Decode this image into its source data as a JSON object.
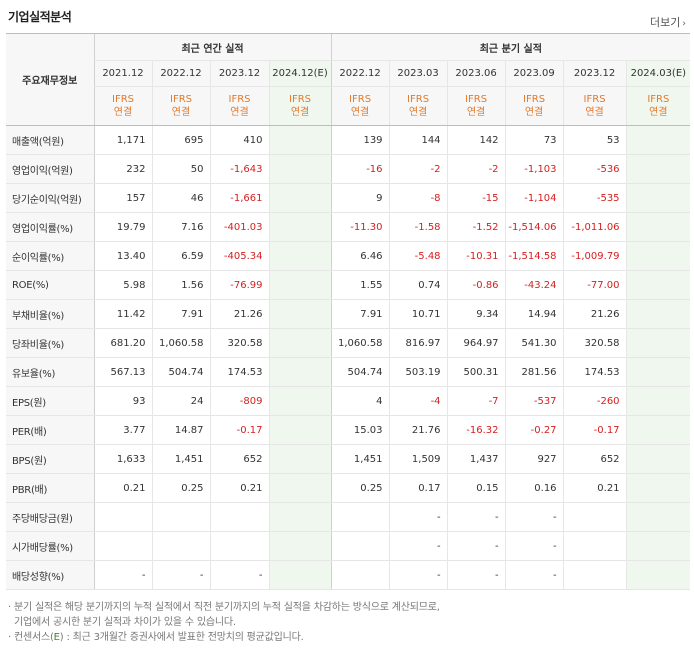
{
  "title": "기업실적분석",
  "more_label": "더보기",
  "header": {
    "row_label": "주요재무정보",
    "annual_group": "최근 연간 실적",
    "quarter_group": "최근 분기 실적",
    "annual_periods": [
      "2021.12",
      "2022.12",
      "2023.12",
      "2024.12(E)"
    ],
    "quarter_periods": [
      "2022.12",
      "2023.03",
      "2023.06",
      "2023.09",
      "2023.12",
      "2024.03(E)"
    ],
    "basis_top": "IFRS",
    "basis_bottom": "연결"
  },
  "rows": [
    {
      "label": "매출액(억원)",
      "annual": [
        "1,171",
        "695",
        "410",
        ""
      ],
      "quarter": [
        "139",
        "144",
        "142",
        "73",
        "53",
        ""
      ]
    },
    {
      "label": "영업이익(억원)",
      "annual": [
        "232",
        "50",
        "-1,643",
        ""
      ],
      "quarter": [
        "-16",
        "-2",
        "-2",
        "-1,103",
        "-536",
        ""
      ]
    },
    {
      "label": "당기순이익(억원)",
      "annual": [
        "157",
        "46",
        "-1,661",
        ""
      ],
      "quarter": [
        "9",
        "-8",
        "-15",
        "-1,104",
        "-535",
        ""
      ]
    },
    {
      "label": "영업이익률(%)",
      "annual": [
        "19.79",
        "7.16",
        "-401.03",
        ""
      ],
      "quarter": [
        "-11.30",
        "-1.58",
        "-1.52",
        "-1,514.06",
        "-1,011.06",
        ""
      ]
    },
    {
      "label": "순이익률(%)",
      "annual": [
        "13.40",
        "6.59",
        "-405.34",
        ""
      ],
      "quarter": [
        "6.46",
        "-5.48",
        "-10.31",
        "-1,514.58",
        "-1,009.79",
        ""
      ]
    },
    {
      "label": "ROE(%)",
      "annual": [
        "5.98",
        "1.56",
        "-76.99",
        ""
      ],
      "quarter": [
        "1.55",
        "0.74",
        "-0.86",
        "-43.24",
        "-77.00",
        ""
      ]
    },
    {
      "label": "부채비율(%)",
      "annual": [
        "11.42",
        "7.91",
        "21.26",
        ""
      ],
      "quarter": [
        "7.91",
        "10.71",
        "9.34",
        "14.94",
        "21.26",
        ""
      ]
    },
    {
      "label": "당좌비율(%)",
      "annual": [
        "681.20",
        "1,060.58",
        "320.58",
        ""
      ],
      "quarter": [
        "1,060.58",
        "816.97",
        "964.97",
        "541.30",
        "320.58",
        ""
      ]
    },
    {
      "label": "유보율(%)",
      "annual": [
        "567.13",
        "504.74",
        "174.53",
        ""
      ],
      "quarter": [
        "504.74",
        "503.19",
        "500.31",
        "281.56",
        "174.53",
        ""
      ]
    },
    {
      "label": "EPS(원)",
      "annual": [
        "93",
        "24",
        "-809",
        ""
      ],
      "quarter": [
        "4",
        "-4",
        "-7",
        "-537",
        "-260",
        ""
      ]
    },
    {
      "label": "PER(배)",
      "annual": [
        "3.77",
        "14.87",
        "-0.17",
        ""
      ],
      "quarter": [
        "15.03",
        "21.76",
        "-16.32",
        "-0.27",
        "-0.17",
        ""
      ]
    },
    {
      "label": "BPS(원)",
      "annual": [
        "1,633",
        "1,451",
        "652",
        ""
      ],
      "quarter": [
        "1,451",
        "1,509",
        "1,437",
        "927",
        "652",
        ""
      ]
    },
    {
      "label": "PBR(배)",
      "annual": [
        "0.21",
        "0.25",
        "0.21",
        ""
      ],
      "quarter": [
        "0.25",
        "0.17",
        "0.15",
        "0.16",
        "0.21",
        ""
      ]
    },
    {
      "label": "주당배당금(원)",
      "annual": [
        "",
        "",
        "",
        ""
      ],
      "quarter": [
        "",
        "-",
        "-",
        "-",
        "",
        ""
      ]
    },
    {
      "label": "시가배당률(%)",
      "annual": [
        "",
        "",
        "",
        ""
      ],
      "quarter": [
        "",
        "-",
        "-",
        "-",
        "",
        ""
      ]
    },
    {
      "label": "배당성향(%)",
      "annual": [
        "-",
        "-",
        "-",
        ""
      ],
      "quarter": [
        "",
        "-",
        "-",
        "-",
        "",
        ""
      ]
    }
  ],
  "footnotes": {
    "line1": "분기 실적은 해당 분기까지의 누적 실적에서 직전 분기까지의 누적 실적을 차감하는 방식으로 계산되므로,",
    "line2": "기업에서 공시한 분기 실적과 차이가 있을 수 있습니다.",
    "line3_prefix": "컨센서스(",
    "line3_e": "E",
    "line3_suffix": ") : 최근 3개월간 증권사에서 발표한 전망치의 평균값입니다."
  }
}
